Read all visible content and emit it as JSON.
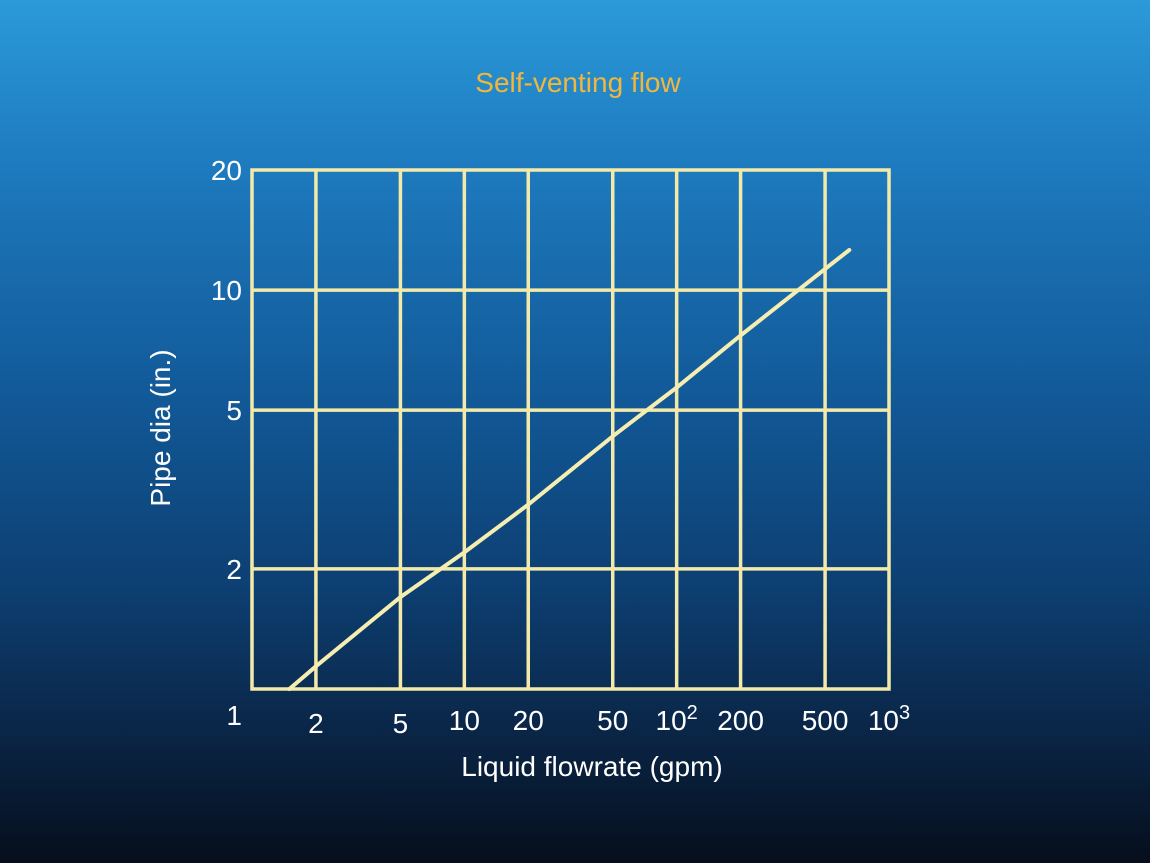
{
  "chart_data": {
    "type": "line",
    "title": "Self-venting flow",
    "xlabel": "Liquid flowrate (gpm)",
    "ylabel": "Pipe dia (in.)",
    "x_scale": "log",
    "y_scale": "log",
    "xlim": [
      1,
      1000
    ],
    "ylim": [
      1,
      20
    ],
    "x_ticks": [
      {
        "value": 2,
        "base": "2",
        "sup": ""
      },
      {
        "value": 5,
        "base": "5",
        "sup": ""
      },
      {
        "value": 10,
        "base": "10",
        "sup": ""
      },
      {
        "value": 20,
        "base": "20",
        "sup": ""
      },
      {
        "value": 50,
        "base": "50",
        "sup": ""
      },
      {
        "value": 100,
        "base": "10",
        "sup": "2"
      },
      {
        "value": 200,
        "base": "200",
        "sup": ""
      },
      {
        "value": 500,
        "base": "500",
        "sup": ""
      },
      {
        "value": 1000,
        "base": "10",
        "sup": "3"
      }
    ],
    "y_ticks": [
      {
        "value": 1,
        "label": "1"
      },
      {
        "value": 2,
        "label": "2"
      },
      {
        "value": 5,
        "label": "5"
      },
      {
        "value": 10,
        "label": "10"
      },
      {
        "value": 20,
        "label": "20"
      }
    ],
    "grid": true,
    "series": [
      {
        "points": [
          {
            "x": 1.5,
            "y": 1.0
          },
          {
            "x": 2.0,
            "y": 1.14
          },
          {
            "x": 5.0,
            "y": 1.7
          },
          {
            "x": 10,
            "y": 2.2
          },
          {
            "x": 20,
            "y": 2.9
          },
          {
            "x": 50,
            "y": 4.3
          },
          {
            "x": 100,
            "y": 5.7
          },
          {
            "x": 200,
            "y": 7.7
          },
          {
            "x": 500,
            "y": 11.3
          },
          {
            "x": 650,
            "y": 12.6
          }
        ]
      }
    ],
    "colors": {
      "title": "#f0b63e",
      "grid": "#f3eaa9",
      "line": "#f6eeb0",
      "text": "#ffffff"
    }
  }
}
